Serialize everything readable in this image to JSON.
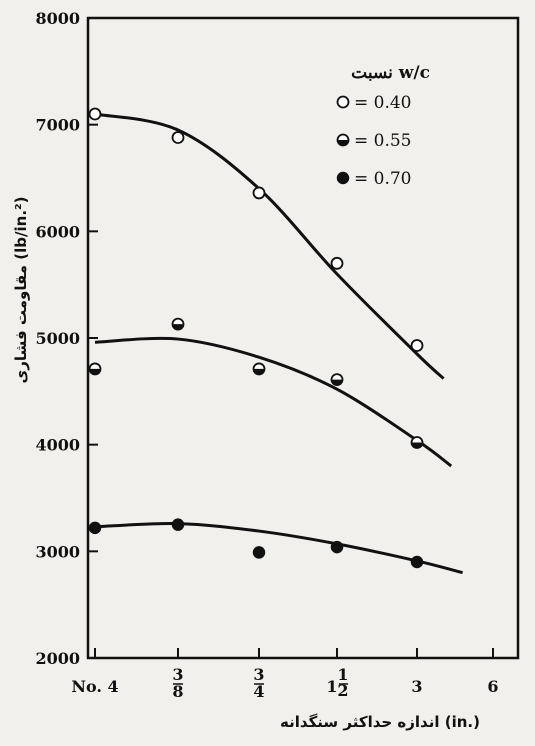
{
  "chart_data": {
    "type": "scatter",
    "ylabel": "مقاومت فشاری (lb/in.²)",
    "xlabel": "اندازه حداکثر سنگدانه (in.)",
    "ylim": [
      2000,
      8000
    ],
    "yticks": [
      2000,
      3000,
      4000,
      5000,
      6000,
      7000,
      8000
    ],
    "x_categories": [
      "No. 4",
      "3/8",
      "3/4",
      "1 1/2",
      "3",
      "6"
    ],
    "legend_title": "نسبت w/c",
    "legend_position": "top-right",
    "grid": false,
    "series": [
      {
        "name": "= 0.40",
        "marker": "open-circle",
        "points": [
          {
            "x": "No. 4",
            "y": 7100
          },
          {
            "x": "3/8",
            "y": 6880
          },
          {
            "x": "3/4",
            "y": 6360
          },
          {
            "x": "1 1/2",
            "y": 5700
          },
          {
            "x": "3",
            "y": 4930
          }
        ],
        "curve": [
          [
            0,
            7100
          ],
          [
            1,
            6950
          ],
          [
            2,
            6400
          ],
          [
            3,
            5600
          ],
          [
            4,
            4850
          ],
          [
            4.35,
            4620
          ]
        ]
      },
      {
        "name": "= 0.55",
        "marker": "half-filled-circle",
        "points": [
          {
            "x": "No. 4",
            "y": 4710
          },
          {
            "x": "3/8",
            "y": 5130
          },
          {
            "x": "3/4",
            "y": 4710
          },
          {
            "x": "1 1/2",
            "y": 4610
          },
          {
            "x": "3",
            "y": 4020
          }
        ],
        "curve": [
          [
            0,
            4960
          ],
          [
            1,
            4990
          ],
          [
            2,
            4820
          ],
          [
            3,
            4520
          ],
          [
            4,
            4040
          ],
          [
            4.45,
            3800
          ]
        ]
      },
      {
        "name": "= 0.70",
        "marker": "filled-circle",
        "points": [
          {
            "x": "No. 4",
            "y": 3220
          },
          {
            "x": "3/8",
            "y": 3250
          },
          {
            "x": "3/4",
            "y": 2990
          },
          {
            "x": "1 1/2",
            "y": 3040
          },
          {
            "x": "3",
            "y": 2900
          }
        ],
        "curve": [
          [
            0,
            3230
          ],
          [
            1,
            3260
          ],
          [
            2,
            3190
          ],
          [
            3,
            3070
          ],
          [
            4,
            2910
          ],
          [
            4.6,
            2800
          ]
        ]
      }
    ]
  }
}
